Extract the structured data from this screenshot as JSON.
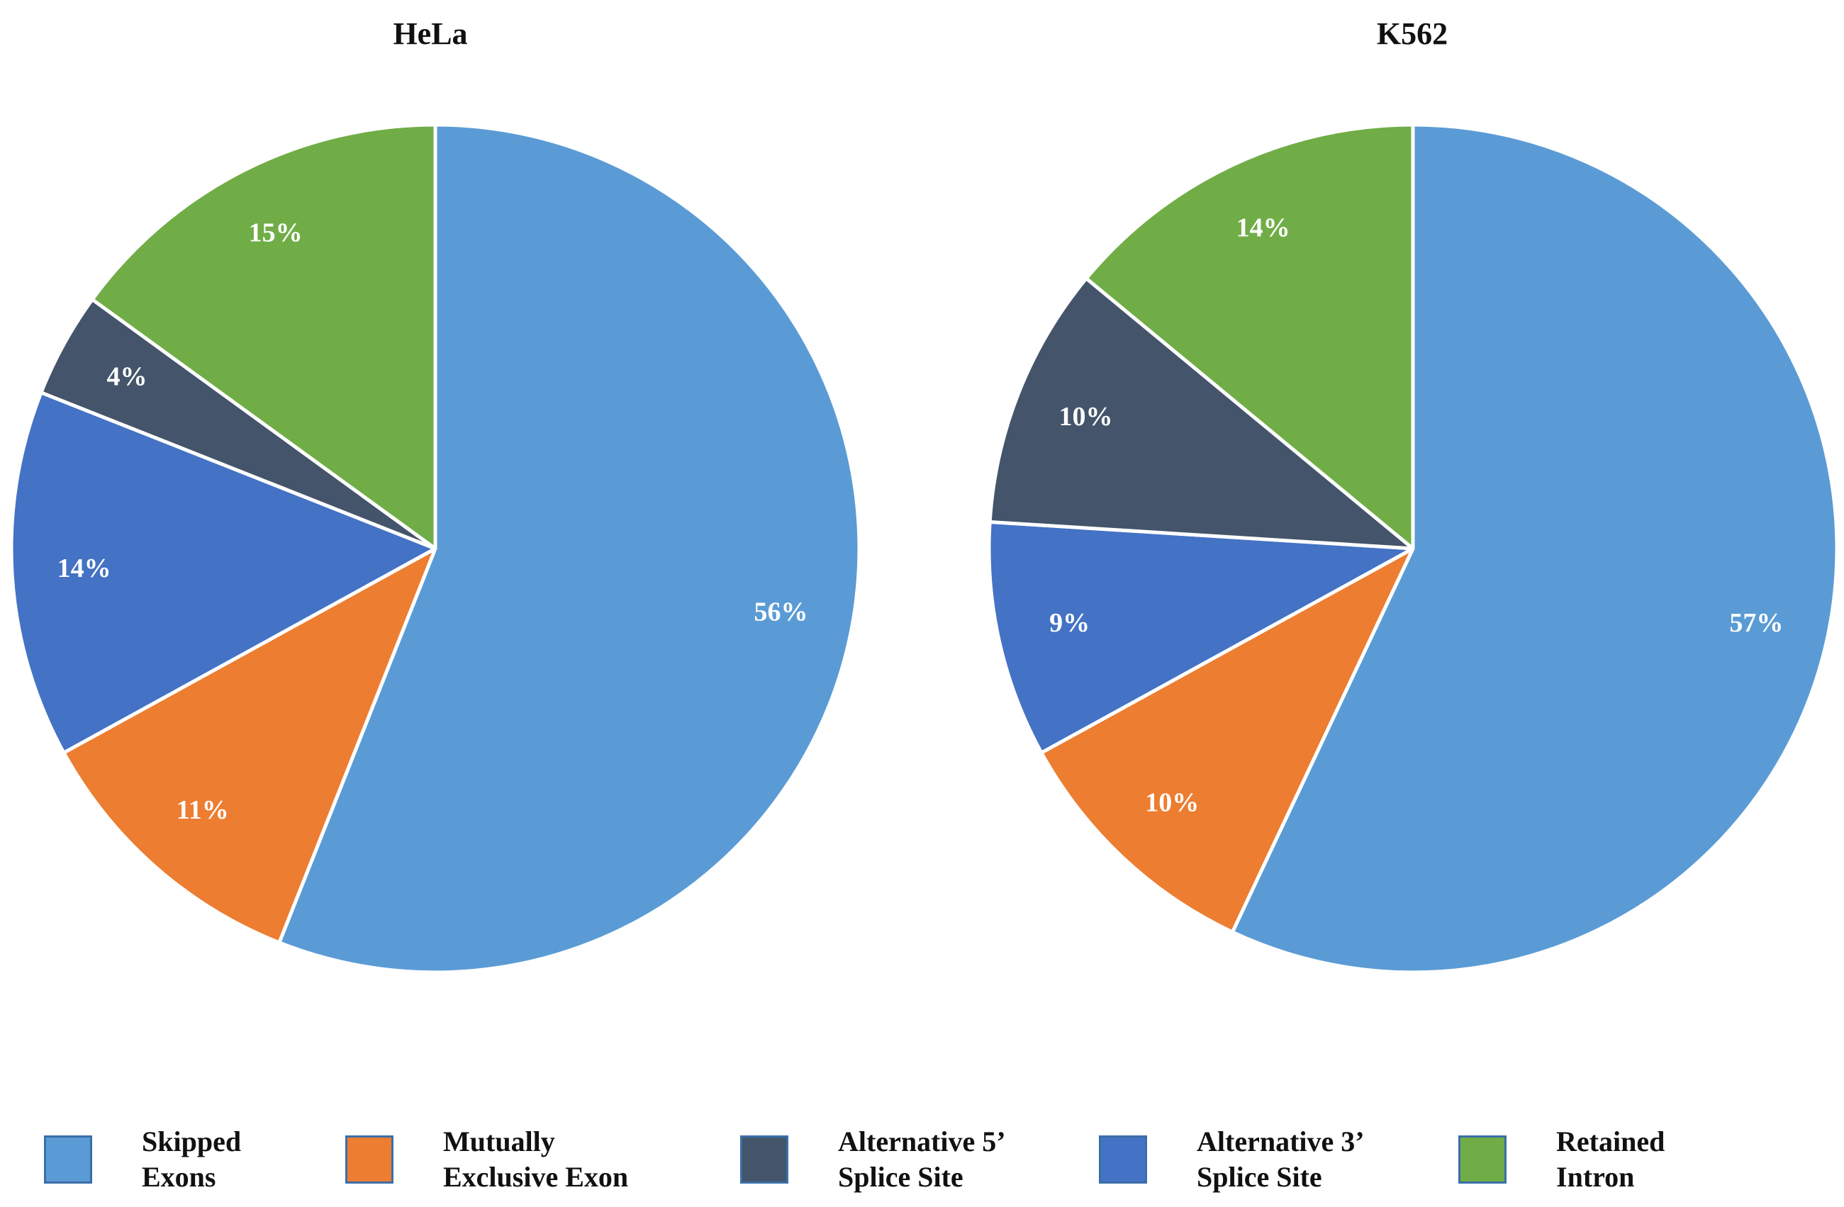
{
  "chart_data": [
    {
      "type": "pie",
      "title": "HeLa",
      "categories": [
        "Skipped Exons",
        "Mutually Exclusive Exon",
        "Alternative 3’ Splice Site",
        "Alternative 5’ Splice Site",
        "Retained Intron"
      ],
      "values": [
        56,
        11,
        14,
        4,
        15
      ],
      "labels": [
        "56%",
        "11%",
        "14%",
        "4%",
        "15%"
      ],
      "colors": [
        "#5b9bd5",
        "#ed7d31",
        "#4472c4",
        "#44546a",
        "#70ad47"
      ]
    },
    {
      "type": "pie",
      "title": "K562",
      "categories": [
        "Skipped Exons",
        "Mutually Exclusive Exon",
        "Alternative 3’ Splice Site",
        "Alternative 5’ Splice Site",
        "Retained Intron"
      ],
      "values": [
        57,
        10,
        9,
        10,
        14
      ],
      "labels": [
        "57%",
        "10%",
        "9%",
        "10%",
        "14%"
      ],
      "colors": [
        "#5b9bd5",
        "#ed7d31",
        "#4472c4",
        "#44546a",
        "#70ad47"
      ]
    }
  ],
  "legend": {
    "placement": "bottom",
    "items": [
      {
        "line1": "Skipped",
        "line2": "Exons",
        "color": "#5b9bd5"
      },
      {
        "line1": "Mutually",
        "line2": "Exclusive Exon",
        "color": "#ed7d31"
      },
      {
        "line1": "Alternative 5’",
        "line2": "Splice Site",
        "color": "#44546a"
      },
      {
        "line1": "Alternative 3’",
        "line2": "Splice Site",
        "color": "#4472c4"
      },
      {
        "line1": "Retained",
        "line2": "Intron",
        "color": "#70ad47"
      }
    ]
  }
}
